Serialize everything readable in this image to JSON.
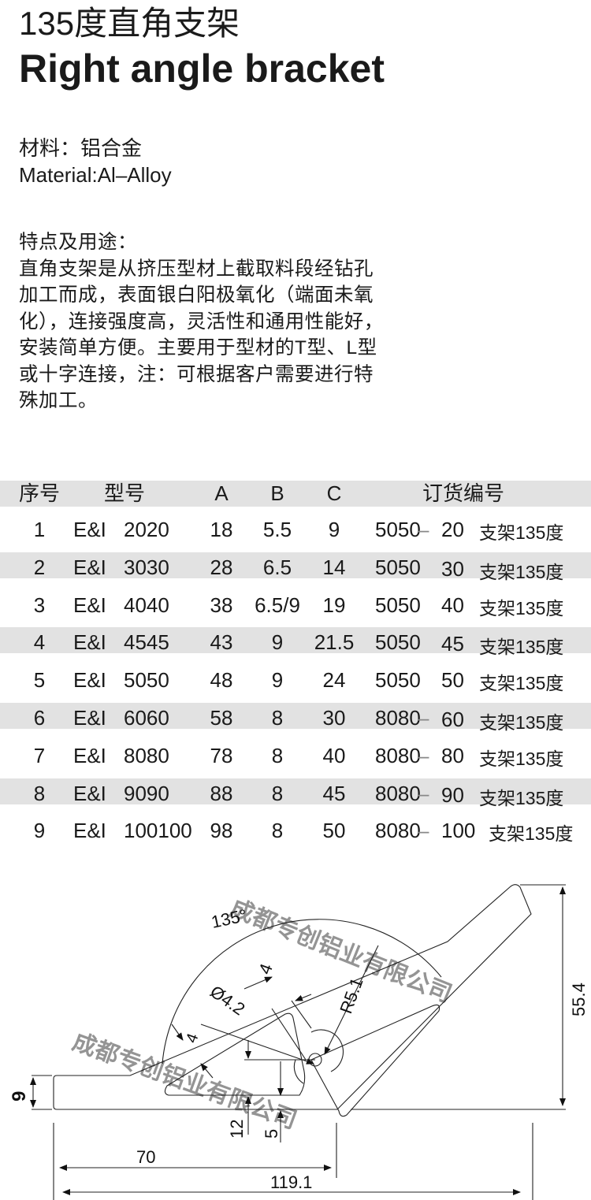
{
  "title_cn": "135度直角支架",
  "title_en": "Right angle bracket",
  "material_cn": "材料：铝合金",
  "material_en": "Material:Al–Alloy",
  "features_heading": "特点及用途：",
  "features_lines": [
    "直角支架是从挤压型材上截取料段经钻孔",
    "加工而成，表面银白阳极氧化（端面未氧",
    "化），连接强度高，灵活性和通用性能好，",
    "安装简单方便。主要用于型材的T型、L型",
    "或十字连接，注：可根据客户需要进行特",
    "殊加工。"
  ],
  "table": {
    "headers": [
      "序号",
      "型号",
      "A",
      "B",
      "C",
      "订货编号"
    ],
    "rows": [
      {
        "no": "1",
        "series": "E&I",
        "model": "2020",
        "a": "18",
        "b": "5.5",
        "c": "9",
        "code": "5050",
        "sep": "–",
        "size": "20",
        "desc": "支架135度"
      },
      {
        "no": "2",
        "series": "E&I",
        "model": "3030",
        "a": "28",
        "b": "6.5",
        "c": "14",
        "code": "5050",
        "sep": "",
        "size": "30",
        "desc": "支架135度"
      },
      {
        "no": "3",
        "series": "E&I",
        "model": "4040",
        "a": "38",
        "b": "6.5/9",
        "c": "19",
        "code": "5050",
        "sep": "",
        "size": "40",
        "desc": "支架135度"
      },
      {
        "no": "4",
        "series": "E&I",
        "model": "4545",
        "a": "43",
        "b": "9",
        "c": "21.5",
        "code": "5050",
        "sep": "",
        "size": "45",
        "desc": "支架135度"
      },
      {
        "no": "5",
        "series": "E&I",
        "model": "5050",
        "a": "48",
        "b": "9",
        "c": "24",
        "code": "5050",
        "sep": "",
        "size": "50",
        "desc": "支架135度"
      },
      {
        "no": "6",
        "series": "E&I",
        "model": "6060",
        "a": "58",
        "b": "8",
        "c": "30",
        "code": "8080",
        "sep": "–",
        "size": "60",
        "desc": "支架135度"
      },
      {
        "no": "7",
        "series": "E&I",
        "model": "8080",
        "a": "78",
        "b": "8",
        "c": "40",
        "code": "8080",
        "sep": "–",
        "size": "80",
        "desc": "支架135度"
      },
      {
        "no": "8",
        "series": "E&I",
        "model": "9090",
        "a": "88",
        "b": "8",
        "c": "45",
        "code": "8080",
        "sep": "–",
        "size": "90",
        "desc": "支架135度"
      },
      {
        "no": "9",
        "series": "E&I",
        "model": "100100",
        "a": "98",
        "b": "8",
        "c": "50",
        "code": "8080",
        "sep": "–",
        "size": "100",
        "desc": "支架135度"
      }
    ],
    "band_color": "#e2e2e2"
  },
  "drawing": {
    "angle": "135°",
    "radius": "R5.1",
    "hole": "Ø4.2",
    "slot_width": "4",
    "wall": "4",
    "thickness": "9",
    "height": "55.4",
    "offset_12": "12",
    "offset_5": "5",
    "length_70": "70",
    "length_total": "119.1"
  },
  "watermark": "成都专创铝业有限公司"
}
